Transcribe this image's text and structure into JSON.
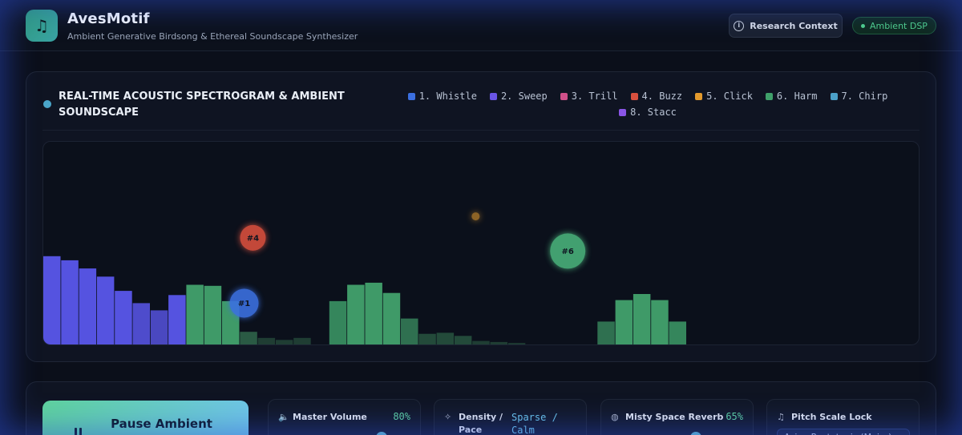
{
  "header": {
    "title": "AvesMotif",
    "subtitle": "Ambient Generative Birdsong & Ethereal Soundscape Synthesizer",
    "logo_icon": "music-note-icon",
    "research_button": "Research Context",
    "status_badge": "Ambient DSP"
  },
  "spectrogram": {
    "title": "REAL-TIME ACOUSTIC SPECTROGRAM & AMBIENT SOUNDSCAPE",
    "legend": [
      {
        "label": "1. Whistle",
        "color": "#3b6fe0"
      },
      {
        "label": "2. Sweep",
        "color": "#6a55e6"
      },
      {
        "label": "3. Trill",
        "color": "#d0508a"
      },
      {
        "label": "4. Buzz",
        "color": "#d8503e"
      },
      {
        "label": "5. Click",
        "color": "#e39a2d"
      },
      {
        "label": "6. Harm",
        "color": "#3fa06a"
      },
      {
        "label": "7. Chirp",
        "color": "#4ba0c8"
      },
      {
        "label": "8. Stacc",
        "color": "#8a55e6"
      }
    ],
    "bars": [
      {
        "v": 0.44,
        "c": "#5553e0"
      },
      {
        "v": 0.42,
        "c": "#5553e0"
      },
      {
        "v": 0.38,
        "c": "#5553e0"
      },
      {
        "v": 0.34,
        "c": "#5553e0"
      },
      {
        "v": 0.27,
        "c": "#5553e0"
      },
      {
        "v": 0.21,
        "c": "#4e4ccc"
      },
      {
        "v": 0.175,
        "c": "#4a48c0"
      },
      {
        "v": 0.25,
        "c": "#5553e0"
      },
      {
        "v": 0.3,
        "c": "#3f9a68"
      },
      {
        "v": 0.295,
        "c": "#3f9a68"
      },
      {
        "v": 0.22,
        "c": "#3f9a68"
      },
      {
        "v": 0.07,
        "c": "#2a5a44"
      },
      {
        "v": 0.04,
        "c": "#1f3d33"
      },
      {
        "v": 0.03,
        "c": "#1f3d33"
      },
      {
        "v": 0.04,
        "c": "#1f3d33"
      },
      {
        "v": 0.0,
        "c": "#1f3d33"
      },
      {
        "v": 0.22,
        "c": "#35865c"
      },
      {
        "v": 0.3,
        "c": "#3f9a68"
      },
      {
        "v": 0.31,
        "c": "#3f9a68"
      },
      {
        "v": 0.26,
        "c": "#3f9a68"
      },
      {
        "v": 0.135,
        "c": "#2f7050"
      },
      {
        "v": 0.06,
        "c": "#234a3a"
      },
      {
        "v": 0.065,
        "c": "#234a3a"
      },
      {
        "v": 0.05,
        "c": "#234a3a"
      },
      {
        "v": 0.025,
        "c": "#1f3d33"
      },
      {
        "v": 0.02,
        "c": "#1f3d33"
      },
      {
        "v": 0.015,
        "c": "#1f3d33"
      },
      {
        "v": 0.0,
        "c": "#1f3d33"
      },
      {
        "v": 0.0,
        "c": "#1f3d33"
      },
      {
        "v": 0.0,
        "c": "#1f3d33"
      },
      {
        "v": 0.0,
        "c": "#1f3d33"
      },
      {
        "v": 0.12,
        "c": "#2f7050"
      },
      {
        "v": 0.225,
        "c": "#3f9a68"
      },
      {
        "v": 0.255,
        "c": "#3f9a68"
      },
      {
        "v": 0.225,
        "c": "#3f9a68"
      },
      {
        "v": 0.12,
        "c": "#35865c"
      }
    ],
    "birds": [
      {
        "label": "#4",
        "color": "#d8503e",
        "fx": 0.239,
        "fy": 0.47,
        "r": 16
      },
      {
        "label": "#1",
        "color": "#3b6fe0",
        "fx": 0.229,
        "fy": 0.79,
        "r": 18
      },
      {
        "label": "#6",
        "color": "#49b07a",
        "fx": 0.598,
        "fy": 0.535,
        "r": 22
      },
      {
        "label": "",
        "color": "#e39a2d",
        "fx": 0.493,
        "fy": 0.365,
        "r": 5
      }
    ]
  },
  "controls": {
    "pause_button": "Pause Ambient",
    "master_volume": {
      "label": "Master Volume",
      "value": "80%",
      "level": 0.8
    },
    "density": {
      "label": "Density / Pace",
      "value": "Sparse / Calm"
    },
    "reverb": {
      "label": "Misty Space Reverb",
      "value": "65%",
      "level": 0.65
    },
    "pitch": {
      "label": "Pitch Scale Lock",
      "value": "Avian Pentatonic (Major)"
    }
  }
}
